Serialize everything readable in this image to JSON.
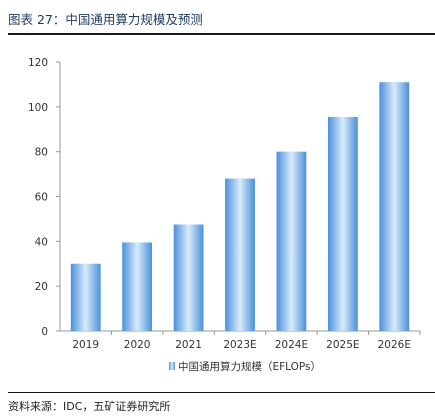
{
  "figure": {
    "title": "图表 27：中国通用算力规模及预测",
    "source": "资料来源：IDC，五矿证券研究所"
  },
  "colors": {
    "bar_edge": "#4a90d9",
    "bar_center": "#d9ebfb",
    "axis": "#999999",
    "title_text": "#1f3a5f"
  },
  "chart_data": {
    "type": "bar",
    "categories": [
      "2019",
      "2020",
      "2021",
      "2023E",
      "2024E",
      "2025E",
      "2026E"
    ],
    "series": [
      {
        "name": "中国通用算力规模（EFLOPs）",
        "values": [
          30,
          39.5,
          47.5,
          68,
          80,
          95.5,
          111
        ]
      }
    ],
    "ylim": [
      0,
      120
    ],
    "yticks": [
      0,
      20,
      40,
      60,
      80,
      100,
      120
    ],
    "grid": false,
    "legend_position": "bottom"
  }
}
